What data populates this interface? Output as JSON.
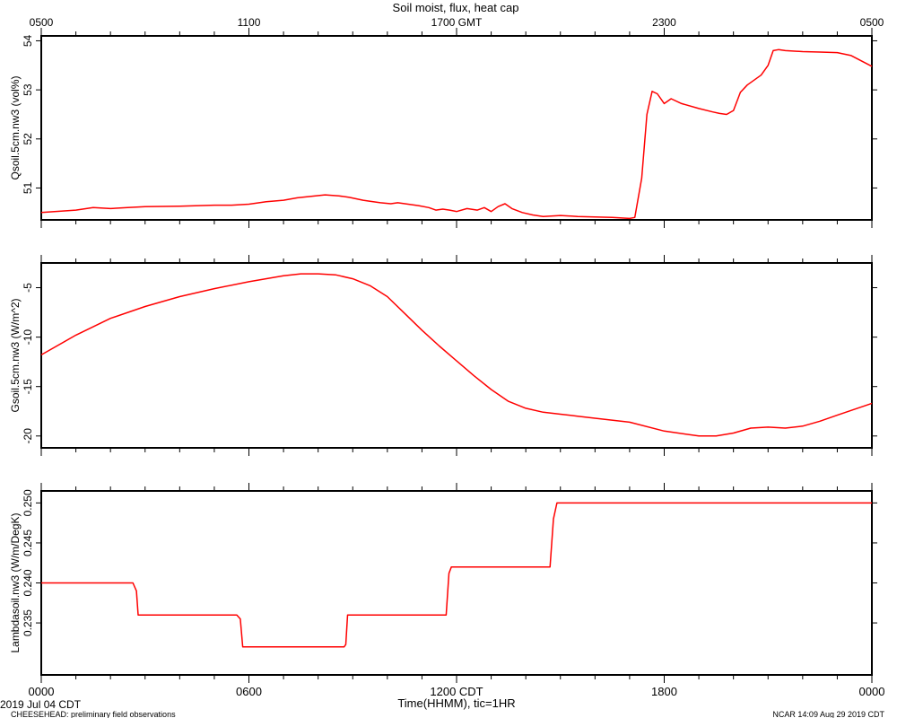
{
  "title": "Soil moist, flux, heat cap",
  "top_ticks": [
    "0500",
    "1100",
    "1700 GMT",
    "2300",
    "0500"
  ],
  "bottom_ticks": [
    "0000",
    "0600",
    "1200 CDT",
    "1800",
    "0000"
  ],
  "xlabel": "Time(HHMM), tic=1HR",
  "date_label": "2019 Jul 04 CDT",
  "footer_left": "CHEESEHEAD: preliminary field observations",
  "footer_right": "NCAR 14:09 Aug 29 2019 CDT",
  "colors": {
    "trace": "#ff0000",
    "axes": "#000000",
    "background": "#ffffff"
  },
  "chart_data": [
    {
      "type": "line",
      "ylabel": "Qsoil.5cm.nw3 (vol%)",
      "xlim": [
        0,
        24
      ],
      "ylim": [
        50.35,
        54.1
      ],
      "yticks": [
        51,
        52,
        53,
        54
      ],
      "ytick_labels": [
        "51",
        "52",
        "53",
        "54"
      ],
      "series": [
        {
          "x": [
            0,
            1,
            1.5,
            2,
            2.5,
            3,
            4,
            5,
            5.5,
            6,
            6.5,
            7,
            7.4,
            7.8,
            8.2,
            8.6,
            8.9,
            9.1,
            9.3,
            9.5,
            9.8,
            10.1,
            10.3,
            10.6,
            10.9,
            11.2,
            11.4,
            11.6,
            11.8,
            12.0,
            12.3,
            12.6,
            12.8,
            13.0,
            13.2,
            13.4,
            13.6,
            13.9,
            14.2,
            14.5,
            15.0,
            15.5,
            16.0,
            16.5,
            17.0,
            17.15,
            17.35,
            17.5,
            17.65,
            17.8,
            18.0,
            18.2,
            18.5,
            19.0,
            19.4,
            19.6,
            19.8,
            20.0,
            20.2,
            20.4,
            20.6,
            20.8,
            21.0,
            21.15,
            21.3,
            21.5,
            22.0,
            22.5,
            23.0,
            23.4,
            24.0
          ],
          "y": [
            50.5,
            50.55,
            50.6,
            50.58,
            50.6,
            50.62,
            50.63,
            50.65,
            50.65,
            50.67,
            50.72,
            50.75,
            50.8,
            50.83,
            50.86,
            50.84,
            50.81,
            50.78,
            50.75,
            50.73,
            50.7,
            50.68,
            50.7,
            50.67,
            50.64,
            50.6,
            50.55,
            50.57,
            50.55,
            50.52,
            50.58,
            50.55,
            50.6,
            50.52,
            50.62,
            50.68,
            50.58,
            50.5,
            50.45,
            50.42,
            50.44,
            50.42,
            50.41,
            50.4,
            50.38,
            50.4,
            51.2,
            52.5,
            52.97,
            52.92,
            52.72,
            52.82,
            52.72,
            52.62,
            52.55,
            52.52,
            52.5,
            52.58,
            52.95,
            53.1,
            53.2,
            53.3,
            53.5,
            53.8,
            53.82,
            53.8,
            53.78,
            53.77,
            53.76,
            53.7,
            53.48
          ]
        }
      ]
    },
    {
      "type": "line",
      "ylabel": "Gsoil.5cm.nw3 (W/m^2)",
      "xlim": [
        0,
        24
      ],
      "ylim": [
        -21.2,
        -2.5
      ],
      "yticks": [
        -5,
        -10,
        -15,
        -20
      ],
      "ytick_labels": [
        "-5",
        "-10",
        "-15",
        "-20"
      ],
      "series": [
        {
          "x": [
            0,
            1,
            2,
            3,
            4,
            5,
            6,
            7,
            7.5,
            8,
            8.5,
            9,
            9.5,
            10,
            10.5,
            11,
            11.5,
            12,
            12.5,
            13,
            13.5,
            14,
            14.5,
            15,
            15.5,
            16,
            17,
            18,
            19,
            19.5,
            20,
            20.5,
            21,
            21.5,
            22,
            22.5,
            23,
            24
          ],
          "y": [
            -11.8,
            -9.8,
            -8.1,
            -6.9,
            -5.9,
            -5.1,
            -4.4,
            -3.8,
            -3.6,
            -3.6,
            -3.7,
            -4.1,
            -4.8,
            -5.9,
            -7.6,
            -9.3,
            -10.9,
            -12.4,
            -13.9,
            -15.3,
            -16.5,
            -17.2,
            -17.6,
            -17.8,
            -18.0,
            -18.2,
            -18.6,
            -19.5,
            -20.0,
            -20.0,
            -19.7,
            -19.2,
            -19.1,
            -19.2,
            -19.0,
            -18.5,
            -17.9,
            -16.7
          ]
        }
      ]
    },
    {
      "type": "line",
      "ylabel": "Lambdasoil.nw3 (W/m/DegK)",
      "xlim": [
        0,
        24
      ],
      "ylim": [
        0.2285,
        0.2515
      ],
      "yticks": [
        0.25,
        0.245,
        0.24,
        0.235
      ],
      "ytick_labels": [
        "0.250",
        "0.245",
        "0.240",
        "0.235"
      ],
      "series": [
        {
          "x": [
            0,
            2.65,
            2.75,
            2.8,
            5.65,
            5.75,
            5.82,
            8.75,
            8.8,
            8.85,
            11.7,
            11.78,
            11.85,
            14.7,
            14.8,
            14.9,
            24
          ],
          "y": [
            0.24,
            0.24,
            0.239,
            0.236,
            0.236,
            0.2355,
            0.232,
            0.232,
            0.2323,
            0.236,
            0.236,
            0.2412,
            0.242,
            0.242,
            0.248,
            0.25,
            0.25
          ]
        }
      ]
    }
  ]
}
